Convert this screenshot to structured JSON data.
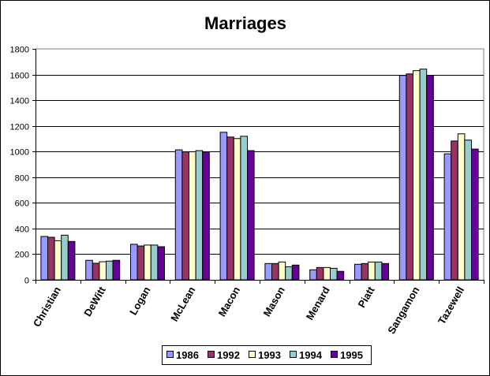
{
  "chart_data": {
    "type": "bar",
    "title": "Marriages",
    "xlabel": "",
    "ylabel": "",
    "ylim": [
      0,
      1800
    ],
    "yticks": [
      0,
      200,
      400,
      600,
      800,
      1000,
      1200,
      1400,
      1600,
      1800
    ],
    "grid": true,
    "legend_placement": "bottom",
    "categories": [
      "Christian",
      "DeWitt",
      "Logan",
      "McLean",
      "Macon",
      "Mason",
      "Menard",
      "Piatt",
      "Sangamon",
      "Tazewell"
    ],
    "series": [
      {
        "name": "1986",
        "color": "#9999ff",
        "values": [
          338,
          152,
          277,
          1013,
          1150,
          127,
          78,
          121,
          1593,
          982
        ]
      },
      {
        "name": "1992",
        "color": "#993366",
        "values": [
          332,
          129,
          264,
          998,
          1113,
          127,
          96,
          127,
          1605,
          1082
        ]
      },
      {
        "name": "1993",
        "color": "#ffffcc",
        "values": [
          305,
          141,
          271,
          998,
          1101,
          139,
          96,
          139,
          1630,
          1138
        ]
      },
      {
        "name": "1994",
        "color": "#99cccc",
        "values": [
          348,
          146,
          271,
          1007,
          1119,
          102,
          90,
          139,
          1642,
          1089
        ]
      },
      {
        "name": "1995",
        "color": "#660099",
        "values": [
          299,
          152,
          258,
          998,
          1007,
          115,
          66,
          127,
          1593,
          1019
        ]
      }
    ]
  }
}
